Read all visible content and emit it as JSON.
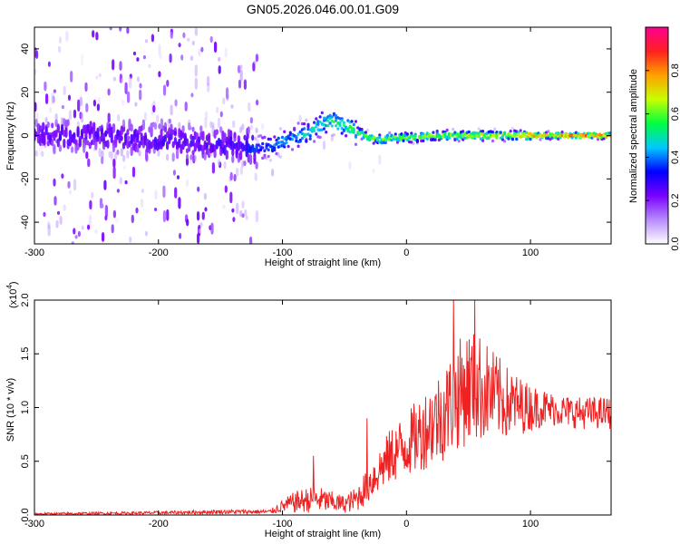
{
  "figure": {
    "title": "GN05.2026.046.00.01.G09"
  },
  "chart_data": [
    {
      "type": "heatmap",
      "xlabel": "Height of straight line (km)",
      "ylabel": "Frequency (Hz)",
      "xlim": [
        -300,
        165
      ],
      "ylim": [
        -50,
        50
      ],
      "xticks": [
        -300,
        -200,
        -100,
        0,
        100
      ],
      "yticks": [
        -40,
        -20,
        0,
        20,
        40
      ],
      "colorbar": {
        "label": "Normalized spectral amplitude",
        "range": [
          0,
          1
        ],
        "ticks": [
          "0.0",
          "0.2",
          "0.4",
          "0.6",
          "0.8"
        ],
        "colors": [
          "#ffffff",
          "#b88cff",
          "#7a00ff",
          "#0000ff",
          "#00c8ff",
          "#00ff40",
          "#c8ff00",
          "#ffa000",
          "#ff2020",
          "#ff0090"
        ]
      },
      "center_frequency": {
        "x": [
          -300,
          -250,
          -200,
          -150,
          -120,
          -100,
          -80,
          -70,
          -60,
          -50,
          -40,
          -30,
          -20,
          -10,
          0,
          20,
          40,
          60,
          80,
          100,
          120,
          165
        ],
        "y": [
          0,
          0,
          -2,
          -4,
          -6,
          -3,
          1,
          5,
          7,
          5,
          2,
          -1,
          -2,
          -1,
          -1,
          0,
          0,
          0,
          0,
          0,
          0,
          0
        ]
      },
      "peak_amplitude": {
        "x": [
          -300,
          -150,
          -130,
          -110,
          -90,
          -70,
          -50,
          -30,
          -10,
          10,
          40,
          70,
          90,
          100,
          165
        ],
        "y": [
          0.28,
          0.3,
          0.34,
          0.42,
          0.5,
          0.55,
          0.6,
          0.65,
          0.68,
          0.7,
          0.72,
          0.74,
          0.76,
          0.9,
          0.95
        ]
      }
    },
    {
      "type": "line",
      "xlabel": "Height of straight line (km)",
      "ylabel": "SNR (10 * v/v)",
      "ylabel_multiplier": "(x10",
      "ylabel_multiplier_exp": "4",
      "ylabel_multiplier_close": ")",
      "xlim": [
        -300,
        165
      ],
      "ylim": [
        0,
        2.0
      ],
      "xticks": [
        -300,
        -200,
        -100,
        0,
        100
      ],
      "yticks": [
        "0.0",
        "0.5",
        "1.0",
        "1.5",
        "2.0"
      ],
      "grid": false,
      "color": "#ee2222",
      "envelope": {
        "x": [
          -300,
          -200,
          -150,
          -110,
          -100,
          -90,
          -80,
          -70,
          -60,
          -50,
          -40,
          -30,
          -20,
          -10,
          0,
          10,
          20,
          30,
          40,
          50,
          60,
          70,
          80,
          90,
          100,
          110,
          120,
          140,
          165
        ],
        "mean": [
          0.01,
          0.02,
          0.03,
          0.03,
          0.08,
          0.12,
          0.14,
          0.14,
          0.12,
          0.1,
          0.15,
          0.3,
          0.45,
          0.58,
          0.65,
          0.75,
          0.85,
          0.95,
          1.1,
          1.2,
          1.18,
          1.12,
          1.05,
          1.02,
          1.0,
          1.0,
          0.98,
          0.95,
          0.95
        ],
        "spread": [
          0.01,
          0.015,
          0.02,
          0.02,
          0.06,
          0.1,
          0.12,
          0.12,
          0.1,
          0.08,
          0.12,
          0.18,
          0.22,
          0.28,
          0.3,
          0.35,
          0.4,
          0.45,
          0.5,
          0.55,
          0.5,
          0.42,
          0.35,
          0.28,
          0.22,
          0.18,
          0.15,
          0.15,
          0.15
        ]
      },
      "peaks": [
        {
          "x": -75,
          "y": 0.55
        },
        {
          "x": -32,
          "y": 0.9
        },
        {
          "x": 38,
          "y": 2.0
        },
        {
          "x": 55,
          "y": 2.0
        }
      ]
    }
  ]
}
